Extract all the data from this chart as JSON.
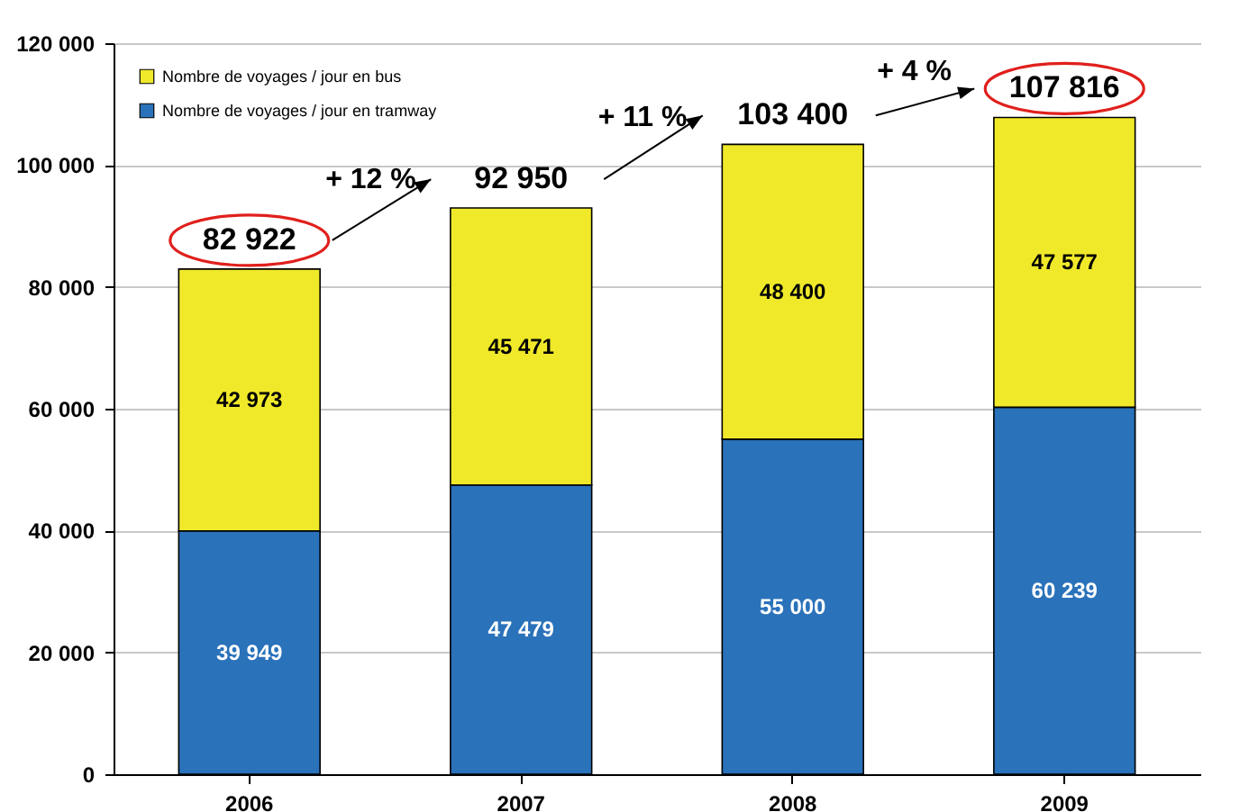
{
  "chart_data": {
    "type": "bar",
    "stacked": true,
    "categories": [
      "2006",
      "2007",
      "2008",
      "2009"
    ],
    "series": [
      {
        "name": "Nombre de voyages / jour en tramway",
        "color": "#2a72ba",
        "values": [
          39949,
          47479,
          55000,
          60239
        ],
        "value_labels": [
          "39 949",
          "47 479",
          "55 000",
          "60 239"
        ]
      },
      {
        "name": "Nombre de voyages / jour en bus",
        "color": "#f0e92a",
        "values": [
          42973,
          45471,
          48400,
          47577
        ],
        "value_labels": [
          "42 973",
          "45 471",
          "48 400",
          "47 577"
        ]
      }
    ],
    "totals": [
      "82 922",
      "92 950",
      "103 400",
      "107 816"
    ],
    "annotations": [
      "+ 12 %",
      "+ 11 %",
      "+ 4 %"
    ],
    "ylim": [
      0,
      120000
    ],
    "yticks": [
      {
        "value": 0,
        "label": "0"
      },
      {
        "value": 20000,
        "label": "20 000"
      },
      {
        "value": 40000,
        "label": "40 000"
      },
      {
        "value": 60000,
        "label": "60 000"
      },
      {
        "value": 80000,
        "label": "80 000"
      },
      {
        "value": 100000,
        "label": "100 000"
      },
      {
        "value": 120000,
        "label": "120 000"
      }
    ],
    "grid": "y",
    "legend": "top left"
  }
}
